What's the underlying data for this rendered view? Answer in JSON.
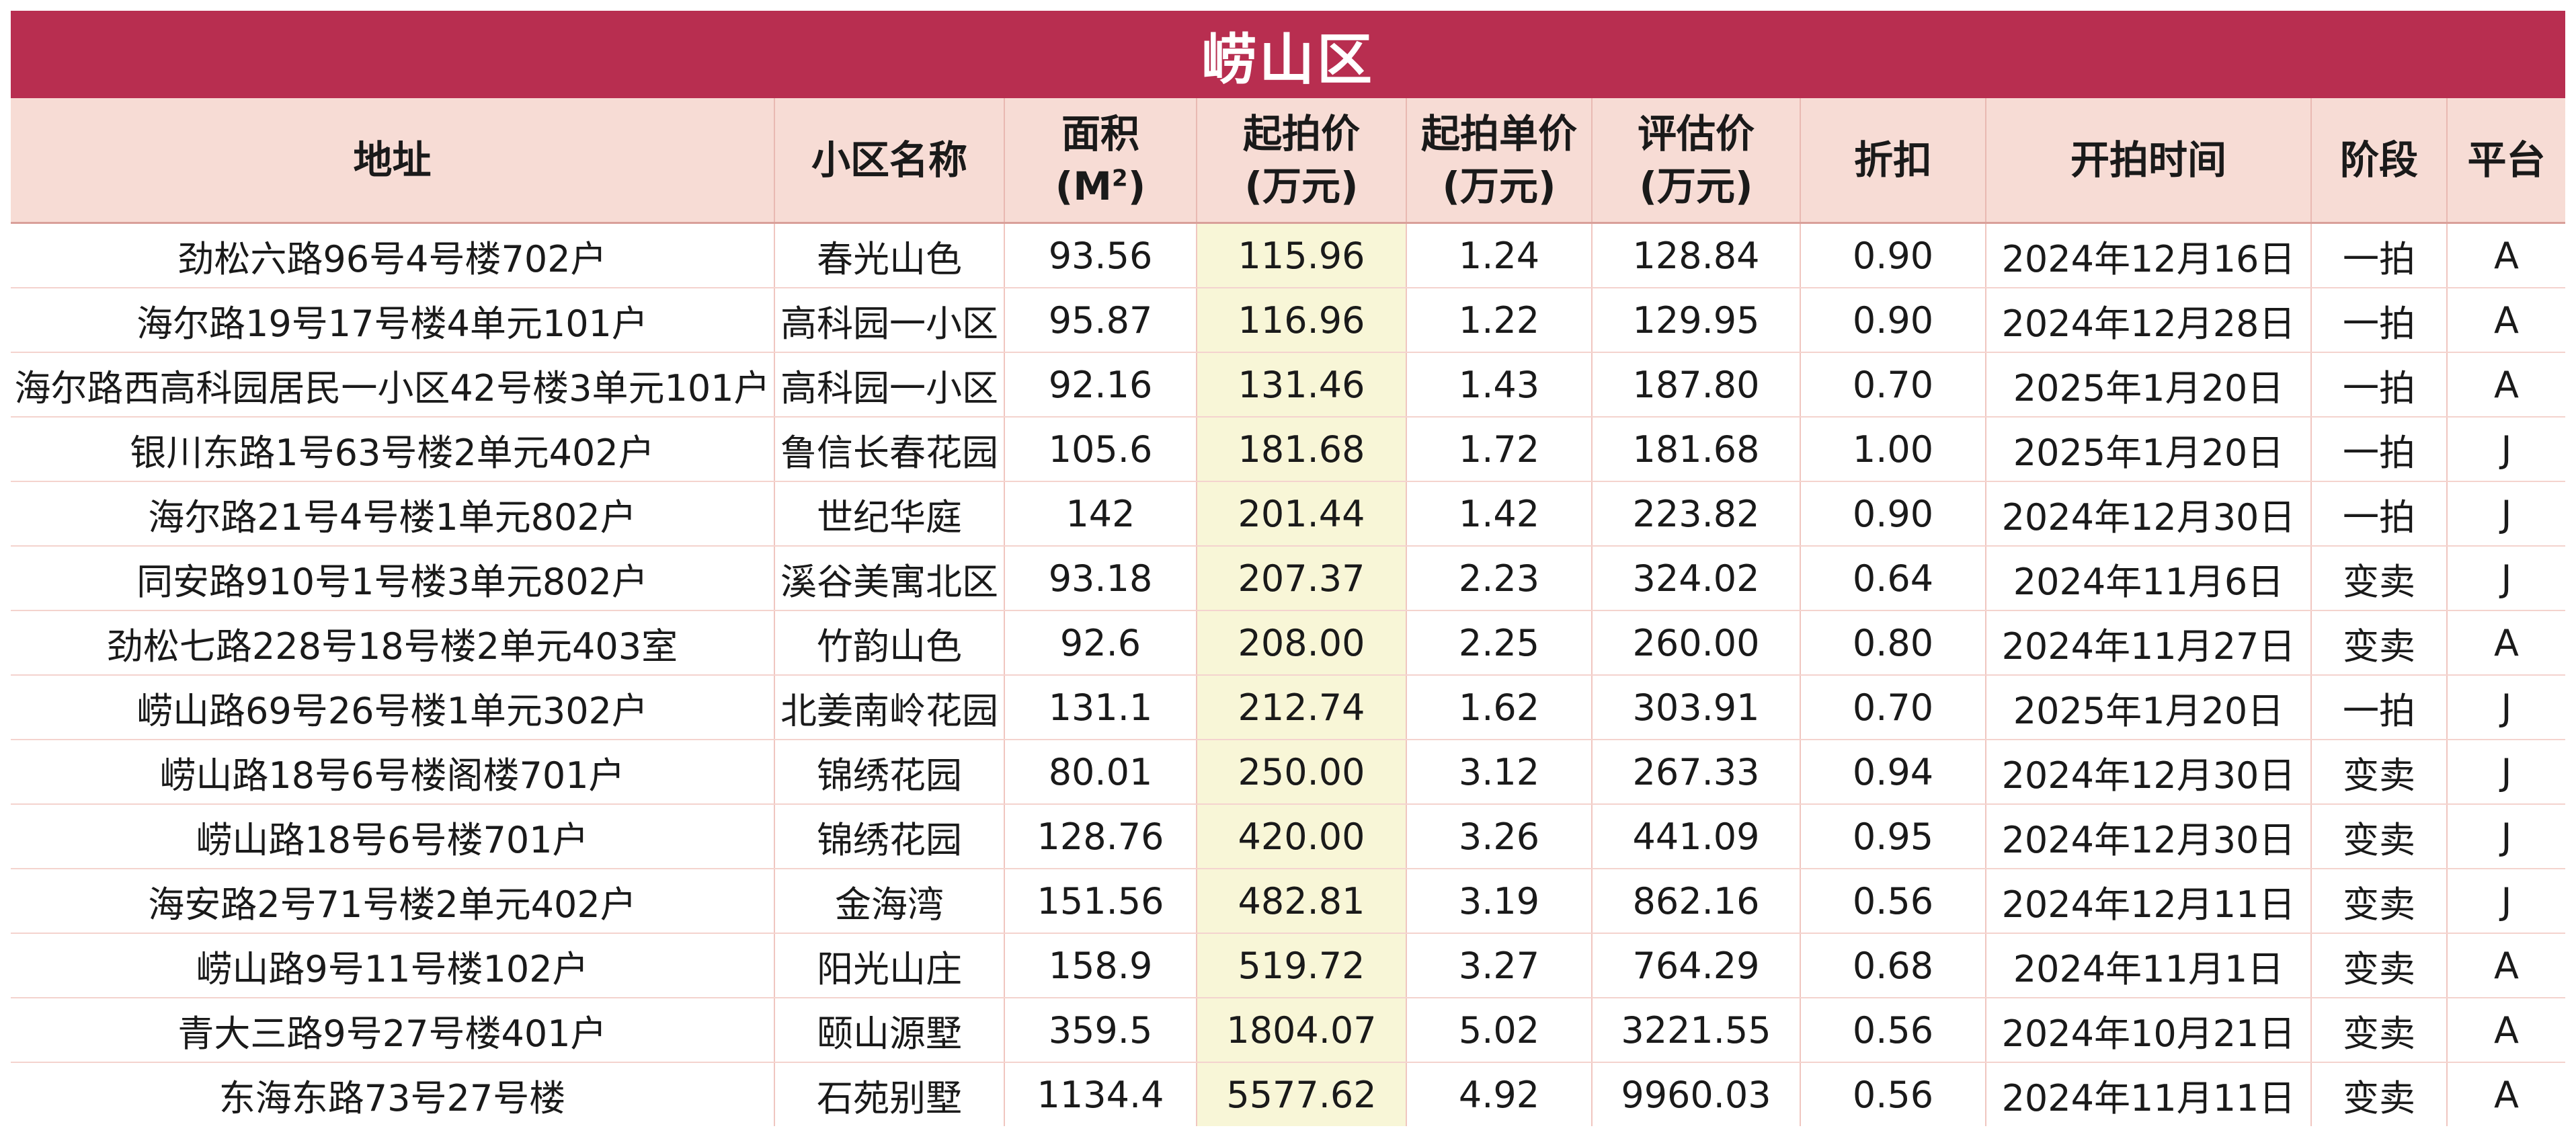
{
  "title": "崂山区",
  "colors": {
    "title_bg": "#b82e50",
    "header_bg": "#f7dcd5",
    "price_col_bg": "#f8f6d7"
  },
  "headers": {
    "address": "地址",
    "community": "小区名称",
    "area_line1": "面积",
    "area_unit": "(M",
    "area_sup": "2",
    "area_close": ")",
    "price_line1": "起拍价",
    "price_line2": "(万元)",
    "unit_price_line1": "起拍单价",
    "unit_price_line2": "(万元)",
    "appraisal_line1": "评估价",
    "appraisal_line2": "(万元)",
    "discount": "折扣",
    "start_date": "开拍时间",
    "stage": "阶段",
    "platform": "平台"
  },
  "rows": [
    {
      "address": "劲松六路96号4号楼702户",
      "community": "春光山色",
      "area": "93.56",
      "price": "115.96",
      "unit_price": "1.24",
      "appraisal": "128.84",
      "discount": "0.90",
      "date": "2024年12月16日",
      "stage": "一拍",
      "platform": "A"
    },
    {
      "address": "海尔路19号17号楼4单元101户",
      "community": "高科园一小区",
      "area": "95.87",
      "price": "116.96",
      "unit_price": "1.22",
      "appraisal": "129.95",
      "discount": "0.90",
      "date": "2024年12月28日",
      "stage": "一拍",
      "platform": "A"
    },
    {
      "address": "海尔路西高科园居民一小区42号楼3单元101户",
      "community": "高科园一小区",
      "area": "92.16",
      "price": "131.46",
      "unit_price": "1.43",
      "appraisal": "187.80",
      "discount": "0.70",
      "date": "2025年1月20日",
      "stage": "一拍",
      "platform": "A"
    },
    {
      "address": "银川东路1号63号楼2单元402户",
      "community": "鲁信长春花园",
      "area": "105.6",
      "price": "181.68",
      "unit_price": "1.72",
      "appraisal": "181.68",
      "discount": "1.00",
      "date": "2025年1月20日",
      "stage": "一拍",
      "platform": "J"
    },
    {
      "address": "海尔路21号4号楼1单元802户",
      "community": "世纪华庭",
      "area": "142",
      "price": "201.44",
      "unit_price": "1.42",
      "appraisal": "223.82",
      "discount": "0.90",
      "date": "2024年12月30日",
      "stage": "一拍",
      "platform": "J"
    },
    {
      "address": "同安路910号1号楼3单元802户",
      "community": "溪谷美寓北区",
      "area": "93.18",
      "price": "207.37",
      "unit_price": "2.23",
      "appraisal": "324.02",
      "discount": "0.64",
      "date": "2024年11月6日",
      "stage": "变卖",
      "platform": "J"
    },
    {
      "address": "劲松七路228号18号楼2单元403室",
      "community": "竹韵山色",
      "area": "92.6",
      "price": "208.00",
      "unit_price": "2.25",
      "appraisal": "260.00",
      "discount": "0.80",
      "date": "2024年11月27日",
      "stage": "变卖",
      "platform": "A"
    },
    {
      "address": "崂山路69号26号楼1单元302户",
      "community": "北姜南岭花园",
      "area": "131.1",
      "price": "212.74",
      "unit_price": "1.62",
      "appraisal": "303.91",
      "discount": "0.70",
      "date": "2025年1月20日",
      "stage": "一拍",
      "platform": "J"
    },
    {
      "address": "崂山路18号6号楼阁楼701户",
      "community": "锦绣花园",
      "area": "80.01",
      "price": "250.00",
      "unit_price": "3.12",
      "appraisal": "267.33",
      "discount": "0.94",
      "date": "2024年12月30日",
      "stage": "变卖",
      "platform": "J"
    },
    {
      "address": "崂山路18号6号楼701户",
      "community": "锦绣花园",
      "area": "128.76",
      "price": "420.00",
      "unit_price": "3.26",
      "appraisal": "441.09",
      "discount": "0.95",
      "date": "2024年12月30日",
      "stage": "变卖",
      "platform": "J"
    },
    {
      "address": "海安路2号71号楼2单元402户",
      "community": "金海湾",
      "area": "151.56",
      "price": "482.81",
      "unit_price": "3.19",
      "appraisal": "862.16",
      "discount": "0.56",
      "date": "2024年12月11日",
      "stage": "变卖",
      "platform": "J"
    },
    {
      "address": "崂山路9号11号楼102户",
      "community": "阳光山庄",
      "area": "158.9",
      "price": "519.72",
      "unit_price": "3.27",
      "appraisal": "764.29",
      "discount": "0.68",
      "date": "2024年11月1日",
      "stage": "变卖",
      "platform": "A"
    },
    {
      "address": "青大三路9号27号楼401户",
      "community": "颐山源墅",
      "area": "359.5",
      "price": "1804.07",
      "unit_price": "5.02",
      "appraisal": "3221.55",
      "discount": "0.56",
      "date": "2024年10月21日",
      "stage": "变卖",
      "platform": "A"
    },
    {
      "address": "东海东路73号27号楼",
      "community": "石苑别墅",
      "area": "1134.4",
      "price": "5577.62",
      "unit_price": "4.92",
      "appraisal": "9960.03",
      "discount": "0.56",
      "date": "2024年11月11日",
      "stage": "变卖",
      "platform": "A"
    }
  ]
}
